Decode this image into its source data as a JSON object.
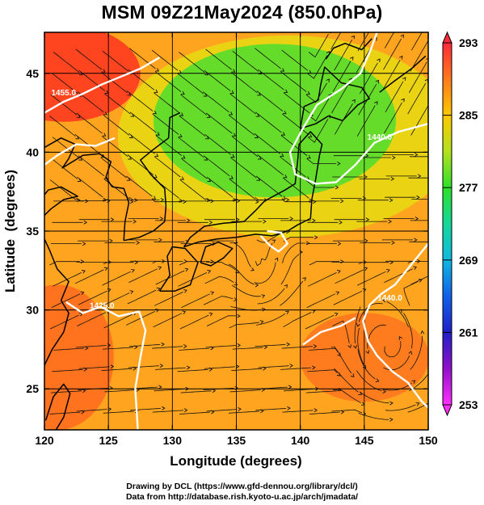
{
  "title": "MSM 09Z21May2024 (850.0hPa)",
  "chart_data": {
    "type": "map",
    "x_axis": {
      "label": "Longitude (degrees)",
      "range": [
        120,
        150
      ],
      "ticks": [
        120,
        125,
        130,
        135,
        140,
        145,
        150
      ]
    },
    "y_axis": {
      "label": "Latitude  (degrees)",
      "range": [
        22.4,
        47.6
      ],
      "ticks": [
        25,
        30,
        35,
        40,
        45
      ]
    },
    "grid": true,
    "colorbar": {
      "ticks": [
        293,
        285,
        277,
        269,
        261,
        253
      ],
      "stops": [
        "#ff2a3a",
        "#ff7a1e",
        "#ffc800",
        "#b4e01e",
        "#2ee02a",
        "#14d89a",
        "#10b8e0",
        "#1060e8",
        "#2020c8",
        "#9010c8",
        "#ff30ff"
      ]
    },
    "contours": [
      {
        "label": "1455.0",
        "lon": 121.5,
        "lat": 43.6
      },
      {
        "label": "1440.0",
        "lon": 146.2,
        "lat": 40.8
      },
      {
        "label": "1425.0",
        "lon": 124.5,
        "lat": 30.1
      },
      {
        "label": "1440.0",
        "lon": 147.0,
        "lat": 30.6
      }
    ],
    "fill_colors": {
      "hot": "#ff3520",
      "warm": "#ffa41e",
      "mild": "#e8d812",
      "cool": "#55dd2c"
    }
  },
  "footer": {
    "line1": "Drawing by DCL (https://www.gfd-dennou.org/library/dcl/)",
    "line2": "Data from http://database.rish.kyoto-u.ac.jp/arch/jmadata/"
  }
}
